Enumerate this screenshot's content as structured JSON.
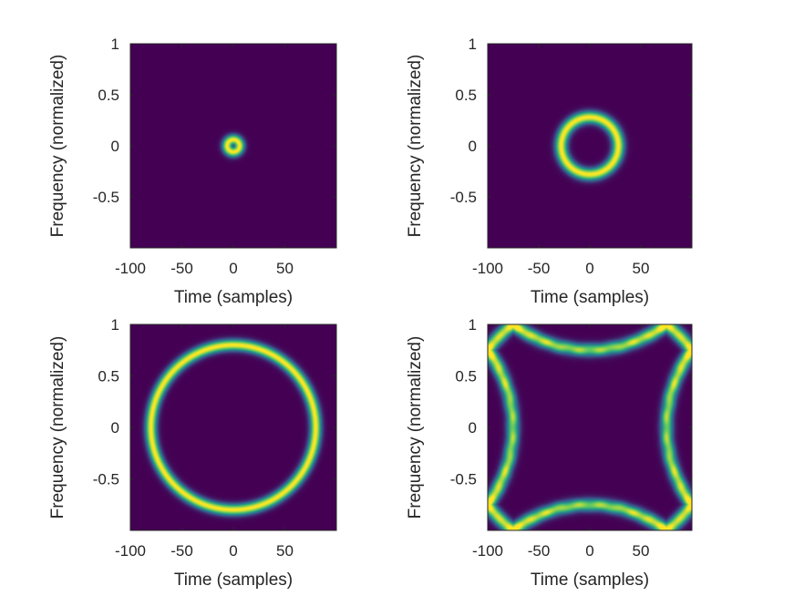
{
  "chart_data": [
    {
      "type": "heatmap",
      "shape": "ring",
      "xlabel": "Time (samples)",
      "ylabel": "Frequency (normalized)",
      "xlim": [
        -100,
        100
      ],
      "ylim": [
        -1,
        1
      ],
      "xticks": [
        -100,
        -50,
        0,
        50
      ],
      "xtick_labels": [
        "-100",
        "-50",
        "0",
        "50"
      ],
      "yticks": [
        -0.5,
        0,
        0.5,
        1
      ],
      "ytick_labels": [
        "-0.5",
        "0",
        "0.5",
        "1"
      ],
      "ring_radius": 0.06,
      "ring_width": 0.05
    },
    {
      "type": "heatmap",
      "shape": "ring",
      "xlabel": "Time (samples)",
      "ylabel": "Frequency (normalized)",
      "xlim": [
        -100,
        100
      ],
      "ylim": [
        -1,
        1
      ],
      "xticks": [
        -100,
        -50,
        0,
        50
      ],
      "xtick_labels": [
        "-100",
        "-50",
        "0",
        "50"
      ],
      "yticks": [
        -0.5,
        0,
        0.5,
        1
      ],
      "ytick_labels": [
        "-0.5",
        "0",
        "0.5",
        "1"
      ],
      "ring_radius": 0.28,
      "ring_width": 0.06
    },
    {
      "type": "heatmap",
      "shape": "ring",
      "xlabel": "Time (samples)",
      "ylabel": "Frequency (normalized)",
      "xlim": [
        -100,
        100
      ],
      "ylim": [
        -1,
        1
      ],
      "xticks": [
        -100,
        -50,
        0,
        50
      ],
      "xtick_labels": [
        "-100",
        "-50",
        "0",
        "50"
      ],
      "yticks": [
        -0.5,
        0,
        0.5,
        1
      ],
      "ytick_labels": [
        "-0.5",
        "0",
        "0.5",
        "1"
      ],
      "ring_radius": 0.8,
      "ring_width": 0.055
    },
    {
      "type": "heatmap",
      "shape": "aliased-ring",
      "xlabel": "Time (samples)",
      "ylabel": "Frequency (normalized)",
      "xlim": [
        -100,
        100
      ],
      "ylim": [
        -1,
        1
      ],
      "xticks": [
        -100,
        -50,
        0,
        50
      ],
      "xtick_labels": [
        "-100",
        "-50",
        "0",
        "50"
      ],
      "yticks": [
        -0.5,
        0,
        0.5,
        1
      ],
      "ytick_labels": [
        "-0.5",
        "0",
        "0.5",
        "1"
      ],
      "ring_radius": 1.25,
      "ring_width": 0.06
    }
  ],
  "colormap": [
    "#440154",
    "#3b528b",
    "#21918c",
    "#5ec962",
    "#fde725"
  ]
}
